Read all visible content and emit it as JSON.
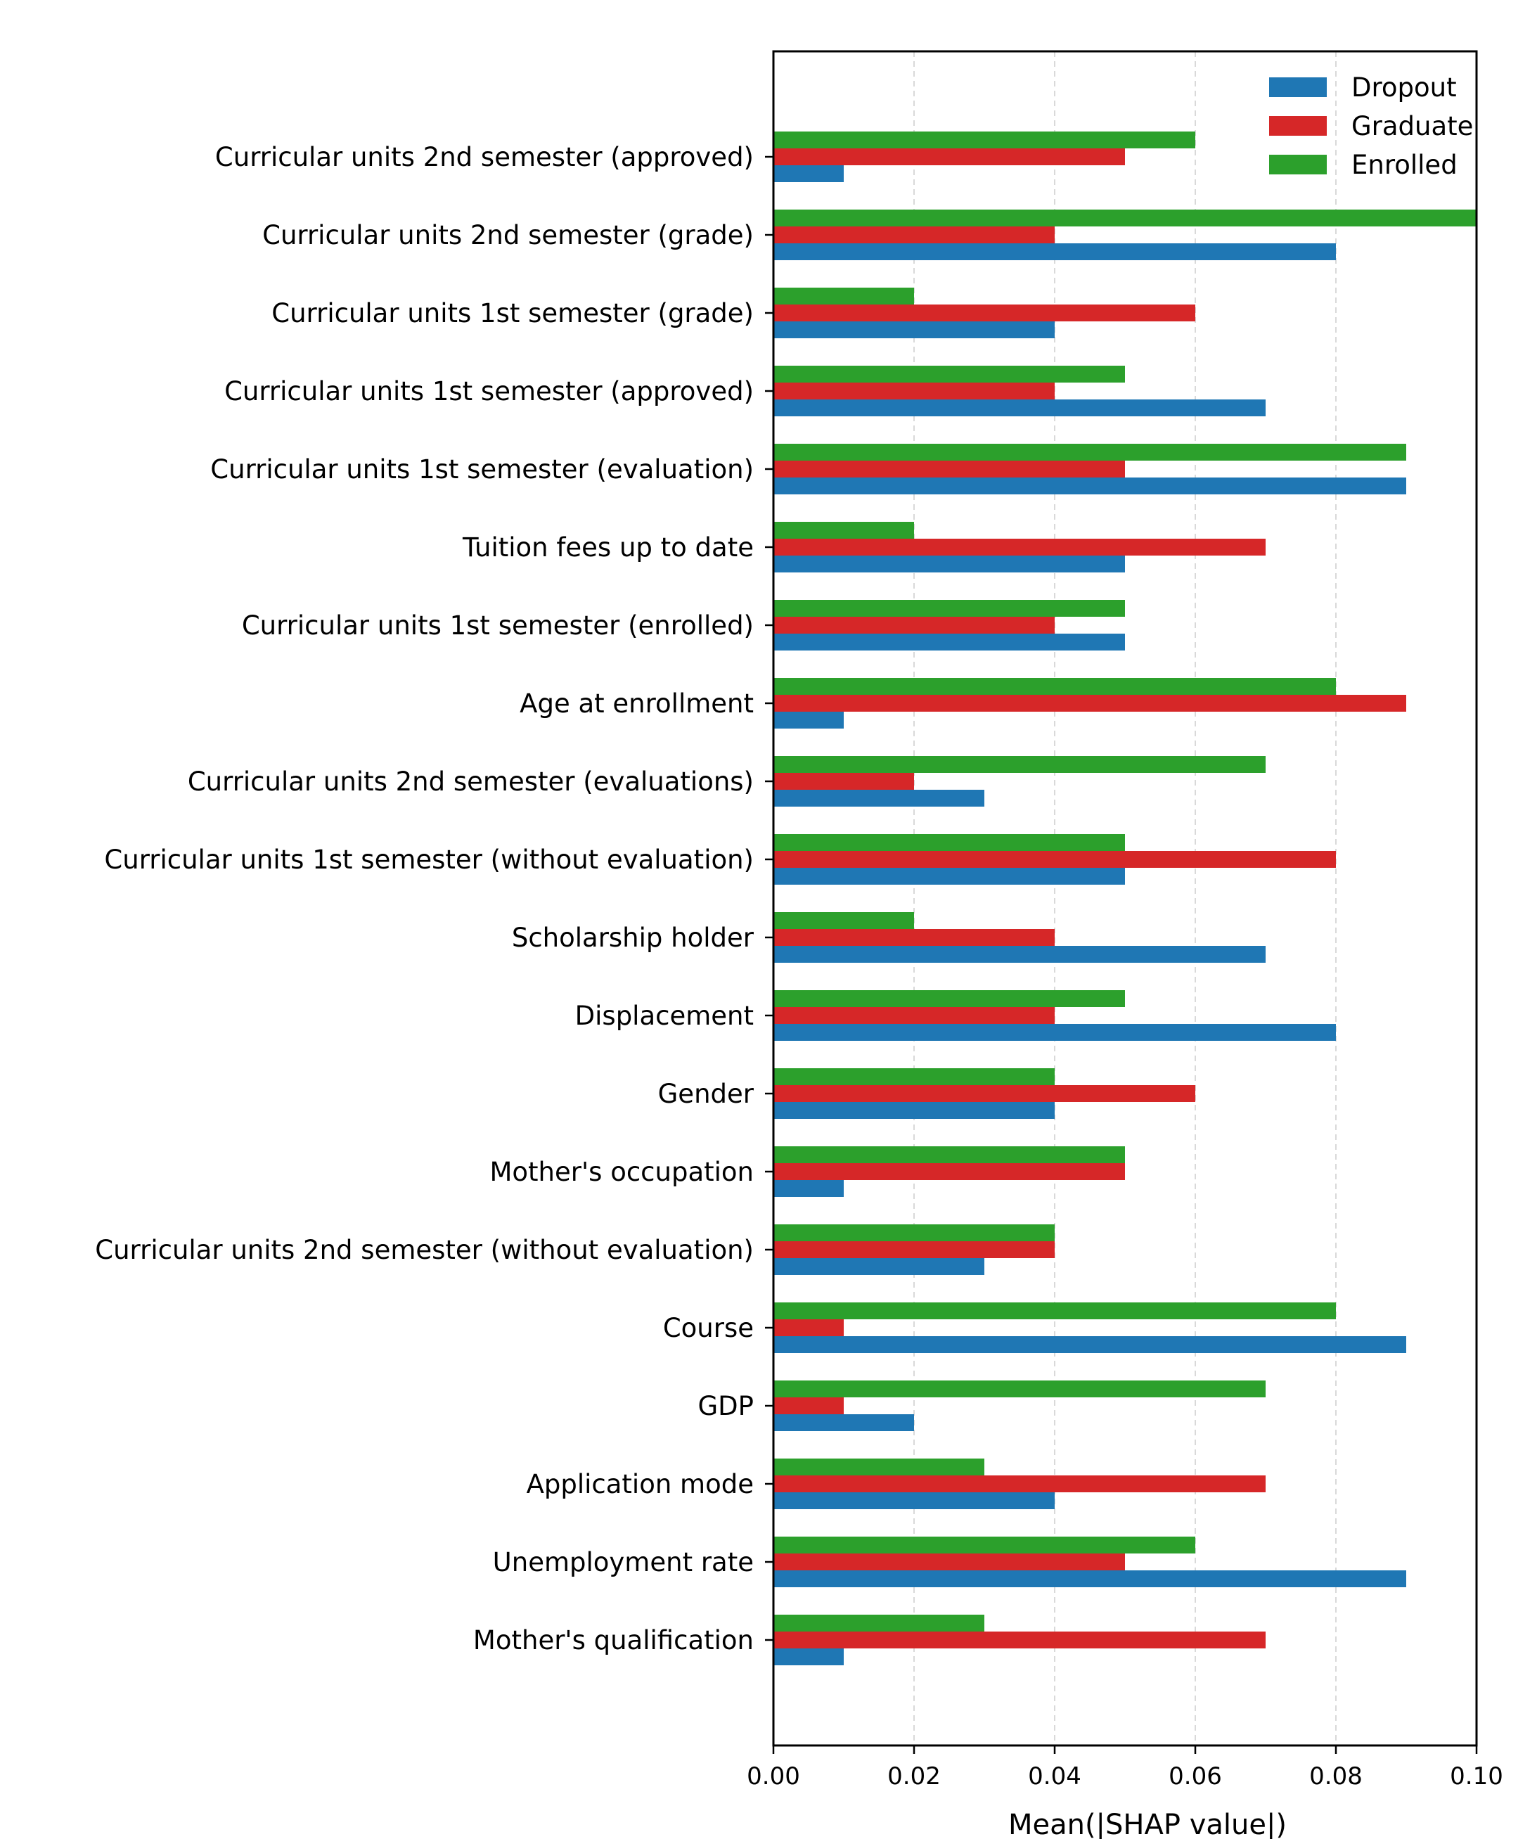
{
  "chart_data": {
    "type": "bar",
    "orientation": "horizontal",
    "title": "",
    "xlabel": "Mean(|SHAP value|)",
    "ylabel": "",
    "xlim": [
      0,
      0.1
    ],
    "xticks": [
      0.0,
      0.02,
      0.04,
      0.06,
      0.08,
      0.1
    ],
    "xtick_labels": [
      "0.00",
      "0.02",
      "0.04",
      "0.06",
      "0.08",
      "0.10"
    ],
    "grid": "x dashed",
    "legend_position": "top-right",
    "categories": [
      "Curricular units 2nd semester (approved)",
      "Curricular units 2nd semester (grade)",
      "Curricular units 1st semester (grade)",
      "Curricular units 1st semester (approved)",
      "Curricular units 1st semester (evaluation)",
      "Tuition fees up to date",
      "Curricular units 1st semester (enrolled)",
      "Age at enrollment",
      "Curricular units 2nd semester (evaluations)",
      "Curricular units 1st semester (without evaluation)",
      "Scholarship holder",
      "Displacement",
      "Gender",
      "Mother's occupation",
      "Curricular units 2nd semester (without evaluation)",
      "Course",
      "GDP",
      "Application mode",
      "Unemployment rate",
      "Mother's qualification"
    ],
    "series": [
      {
        "name": "Dropout",
        "color": "#1f77b4",
        "values": [
          0.01,
          0.08,
          0.04,
          0.07,
          0.09,
          0.05,
          0.05,
          0.01,
          0.03,
          0.05,
          0.07,
          0.08,
          0.04,
          0.01,
          0.03,
          0.09,
          0.02,
          0.04,
          0.09,
          0.01
        ]
      },
      {
        "name": "Graduate",
        "color": "#d62728",
        "values": [
          0.05,
          0.04,
          0.06,
          0.04,
          0.05,
          0.07,
          0.04,
          0.09,
          0.02,
          0.08,
          0.04,
          0.04,
          0.06,
          0.05,
          0.04,
          0.01,
          0.01,
          0.07,
          0.05,
          0.07
        ]
      },
      {
        "name": "Enrolled",
        "color": "#2ca02c",
        "values": [
          0.06,
          0.1,
          0.02,
          0.05,
          0.09,
          0.02,
          0.05,
          0.08,
          0.07,
          0.05,
          0.02,
          0.05,
          0.04,
          0.05,
          0.04,
          0.08,
          0.07,
          0.03,
          0.06,
          0.03
        ]
      }
    ]
  }
}
